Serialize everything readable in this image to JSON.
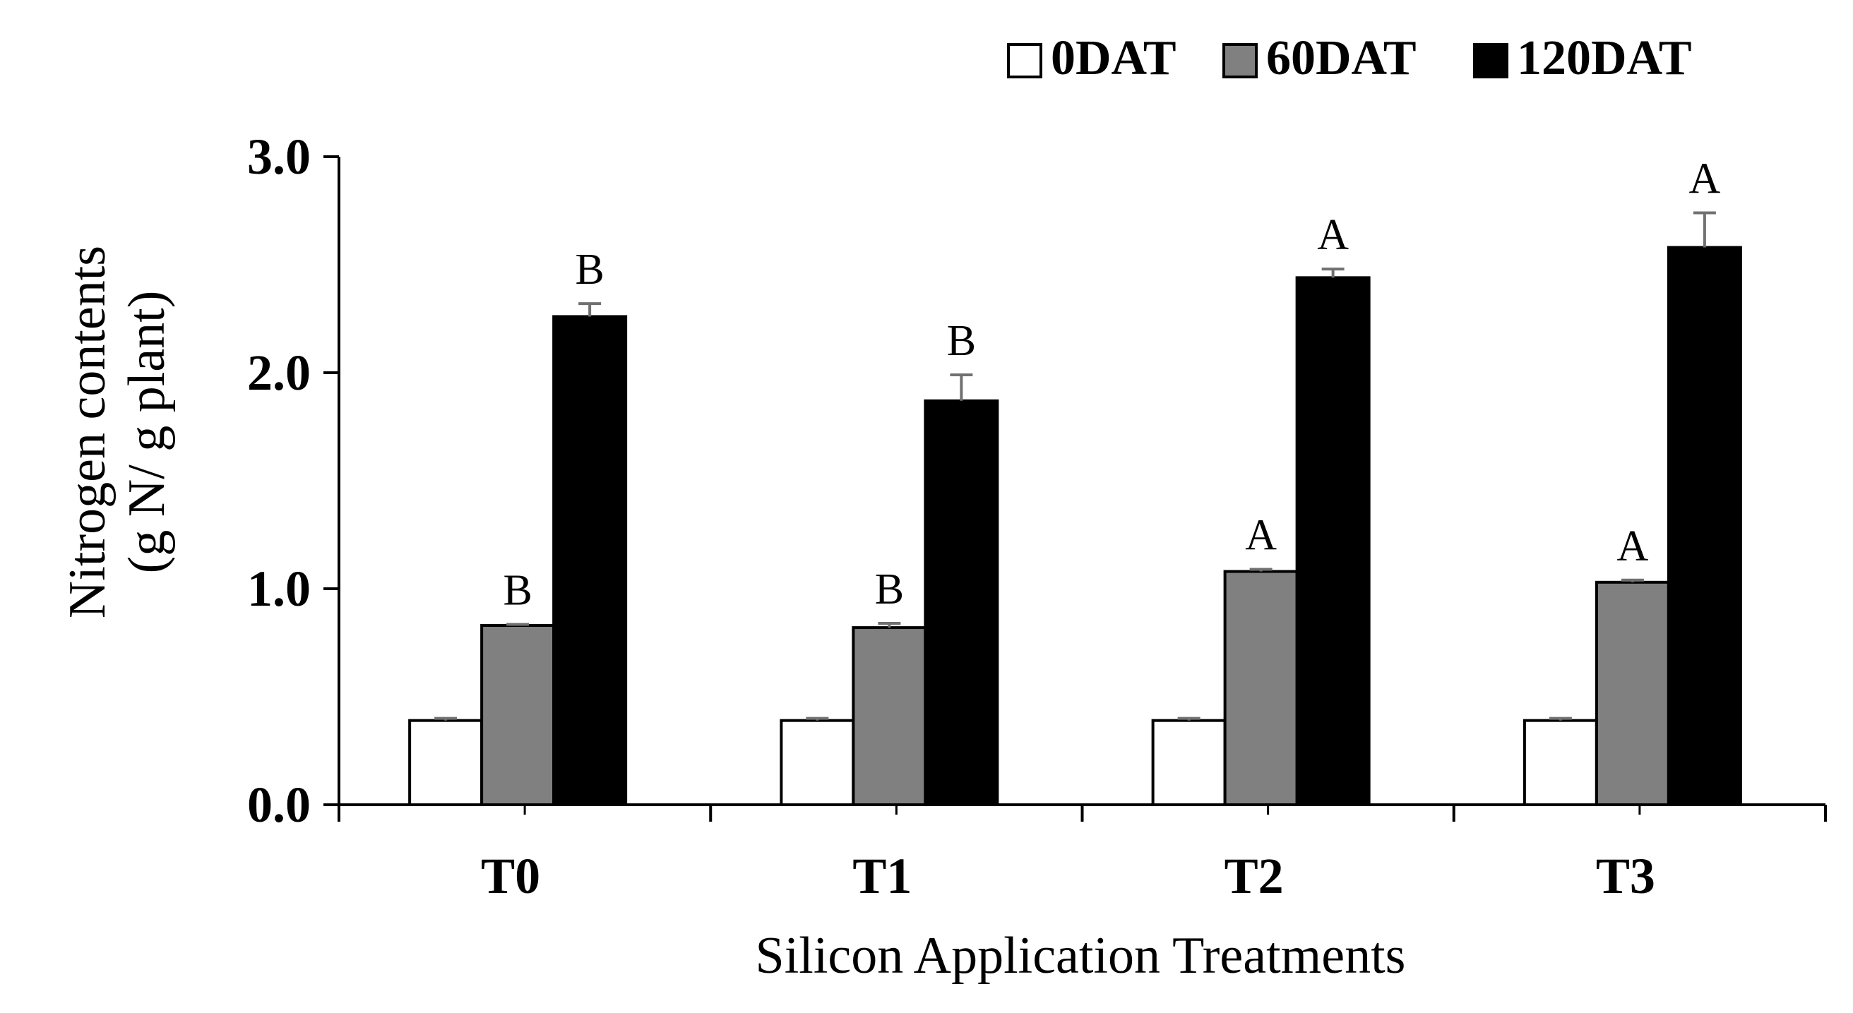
{
  "chart_data": {
    "type": "bar",
    "title": "",
    "xlabel": "Silicon Application Treatments",
    "ylabel_line1": "Nitrogen contents",
    "ylabel_line2": "(g N/ g plant)",
    "ylim": [
      0,
      3.0
    ],
    "yticks": [
      0.0,
      1.0,
      2.0,
      3.0
    ],
    "ytick_labels": [
      "0.0",
      "1.0",
      "2.0",
      "3.0"
    ],
    "categories": [
      "T0",
      "T1",
      "T2",
      "T3"
    ],
    "legend_position": "top-right",
    "series": [
      {
        "name": "0DAT",
        "color": "#ffffff",
        "values": [
          0.39,
          0.39,
          0.39,
          0.39
        ],
        "errors": [
          0.01,
          0.01,
          0.01,
          0.01
        ],
        "labels": [
          "",
          "",
          "",
          ""
        ]
      },
      {
        "name": "60DAT",
        "color": "#808080",
        "values": [
          0.83,
          0.82,
          1.08,
          1.03
        ],
        "errors": [
          0.005,
          0.02,
          0.01,
          0.01
        ],
        "labels": [
          "B",
          "B",
          "A",
          "A"
        ]
      },
      {
        "name": "120DAT",
        "color": "#000000",
        "values": [
          2.26,
          1.87,
          2.44,
          2.58
        ],
        "errors": [
          0.06,
          0.12,
          0.04,
          0.16
        ],
        "labels": [
          "B",
          "B",
          "A",
          "A"
        ]
      }
    ]
  }
}
